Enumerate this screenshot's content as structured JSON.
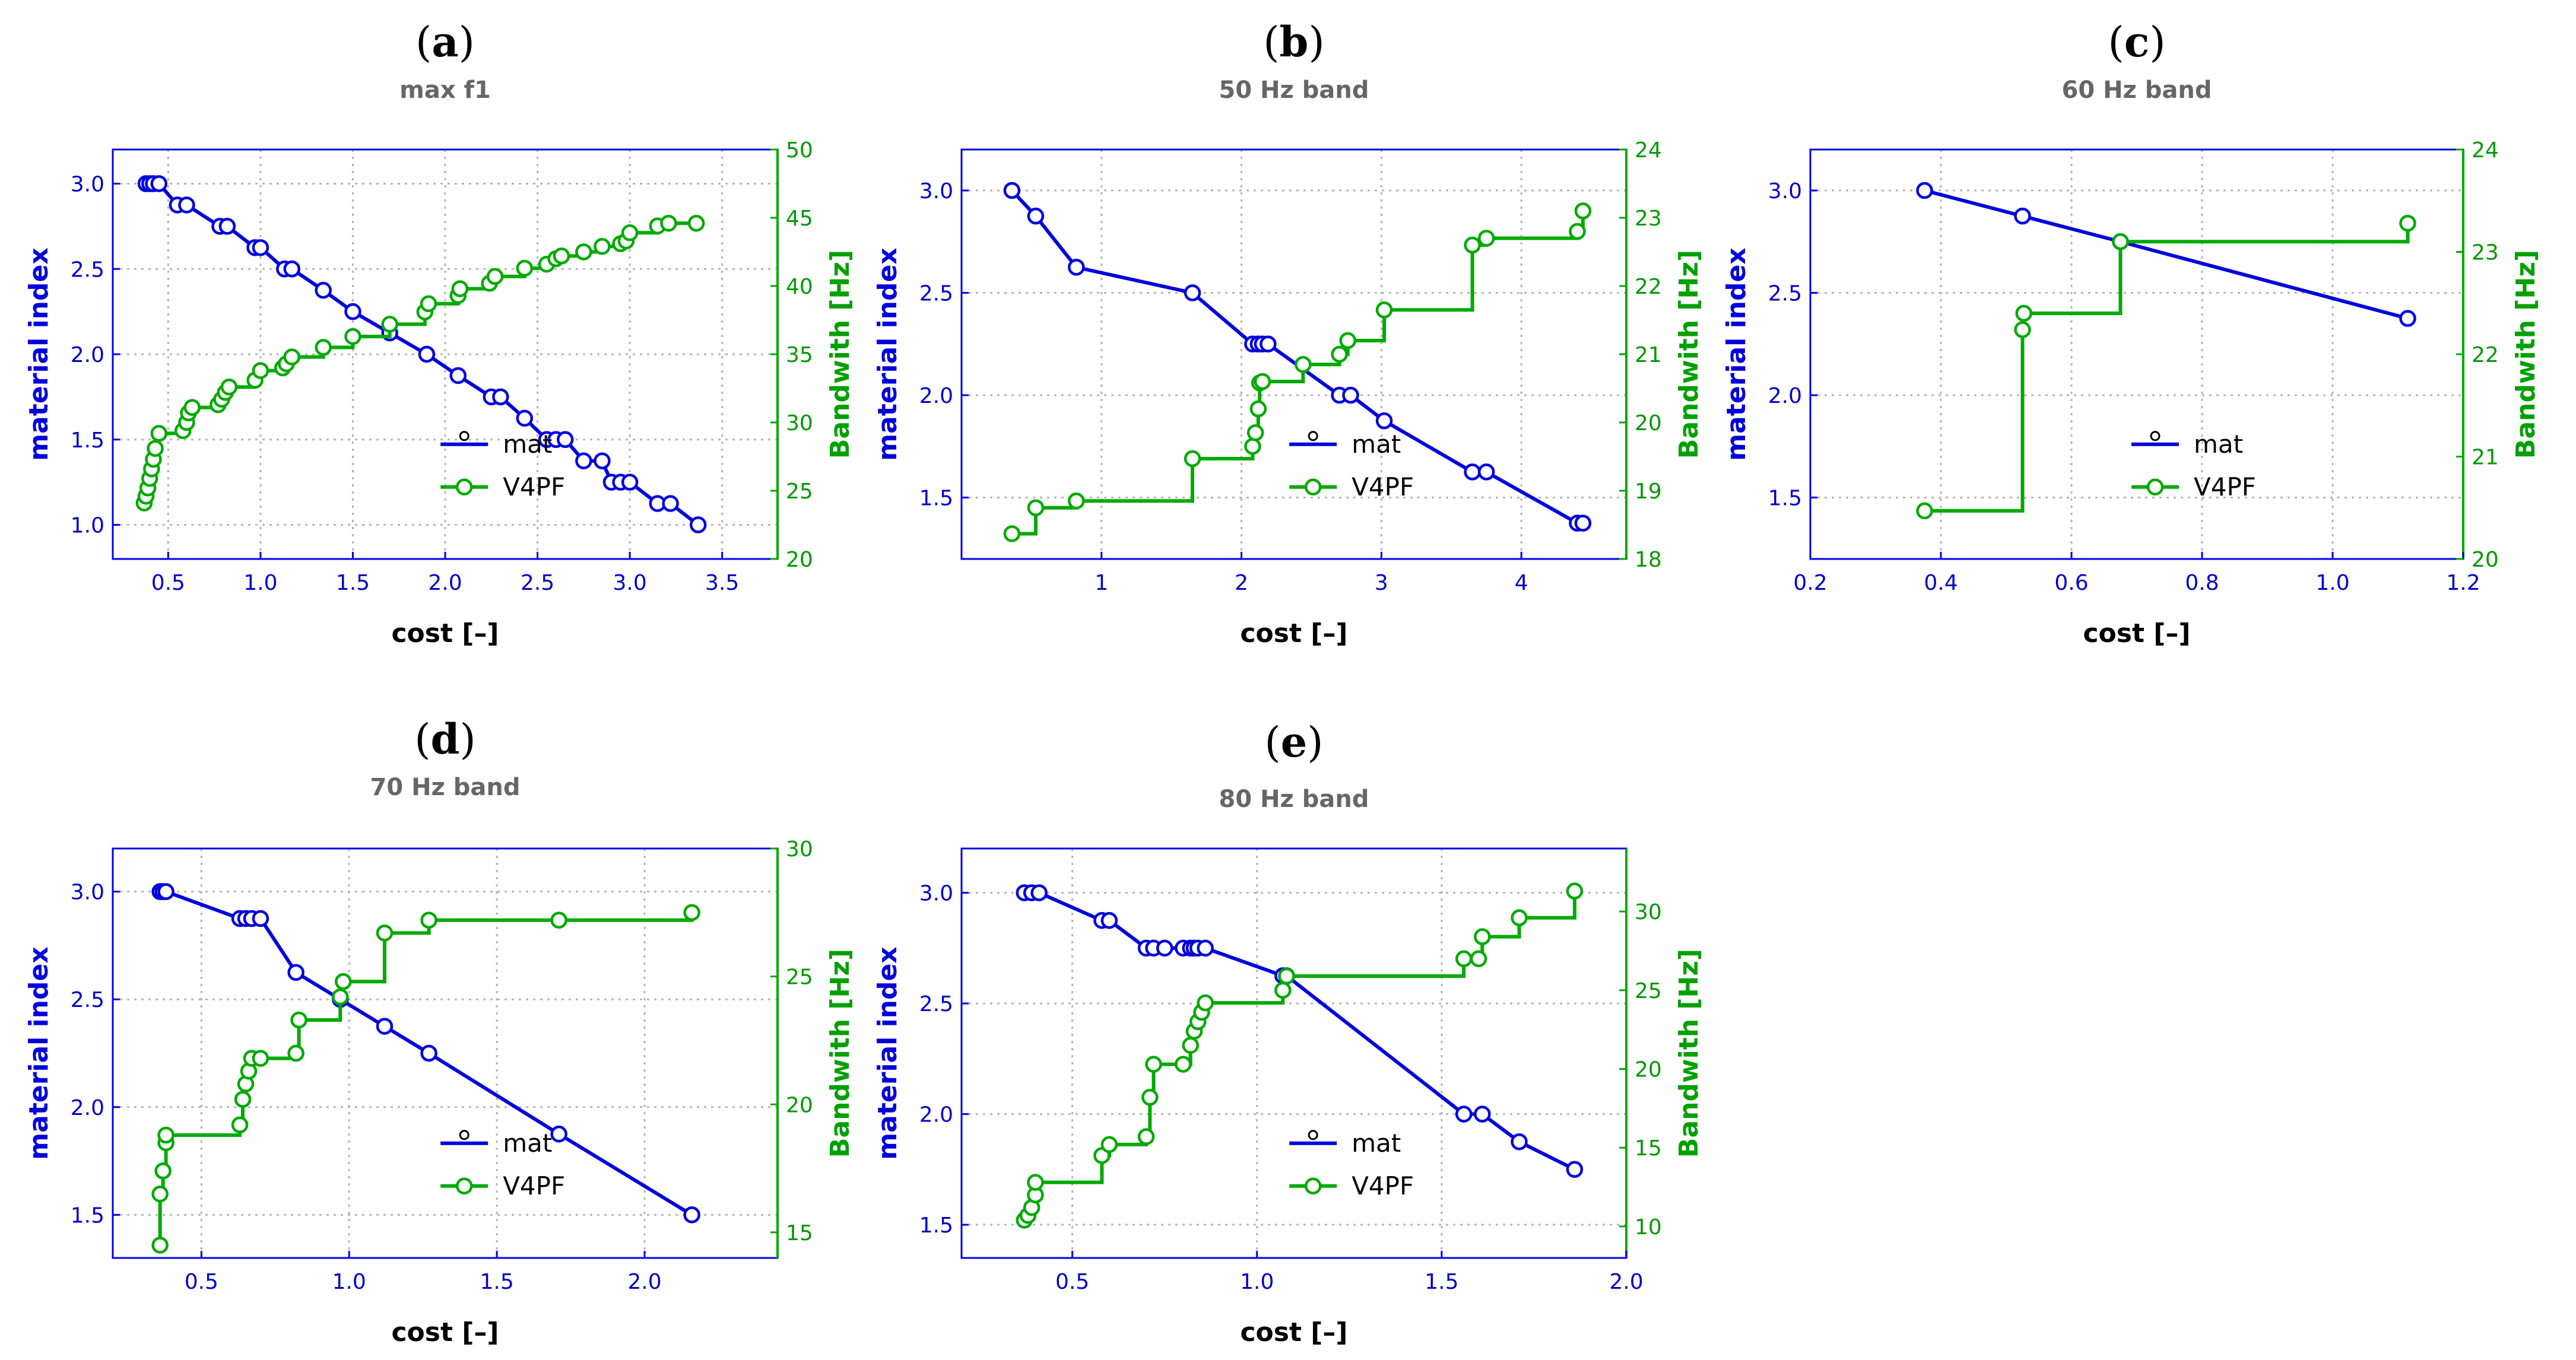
{
  "colors": {
    "mat": "#0000dd",
    "v4pf": "#00aa00",
    "axis": "#0000ee",
    "grid": "#b5b5b5"
  },
  "legend": {
    "mat": "mat",
    "v4pf": "V4PF"
  },
  "chart_data": [
    {
      "type": "line",
      "id": "a",
      "letter": "a",
      "title": "max f1",
      "xlabel": "cost [–]",
      "ylabel": "material index",
      "y2label": "Bandwith [Hz]",
      "xlim": [
        0.2,
        3.8
      ],
      "ylim": [
        0.8,
        3.2
      ],
      "y2lim": [
        20,
        50
      ],
      "xticks": [
        0.5,
        1.0,
        1.5,
        2.0,
        2.5,
        3.0,
        3.5
      ],
      "xticklabels": [
        "0.5",
        "1.0",
        "1.5",
        "2.0",
        "2.5",
        "3.0",
        "3.5"
      ],
      "yticks": [
        1.0,
        1.5,
        2.0,
        2.5,
        3.0
      ],
      "yticklabels": [
        "1.0",
        "1.5",
        "2.0",
        "2.5",
        "3.0"
      ],
      "y2ticks": [
        20,
        25,
        30,
        35,
        40,
        45,
        50
      ],
      "y2ticklabels": [
        "20",
        "25",
        "30",
        "35",
        "40",
        "45",
        "50"
      ],
      "series": [
        {
          "name": "mat",
          "axis": "left",
          "step": false,
          "x": [
            0.38,
            0.4,
            0.42,
            0.45,
            0.55,
            0.6,
            0.78,
            0.82,
            0.97,
            1.0,
            1.13,
            1.17,
            1.34,
            1.5,
            1.7,
            1.9,
            2.07,
            2.25,
            2.3,
            2.43,
            2.55,
            2.6,
            2.65,
            2.75,
            2.85,
            2.9,
            2.95,
            3.0,
            3.15,
            3.22,
            3.37
          ],
          "y": [
            3.0,
            3.0,
            3.0,
            3.0,
            2.875,
            2.875,
            2.75,
            2.75,
            2.625,
            2.625,
            2.5,
            2.5,
            2.375,
            2.25,
            2.125,
            2.0,
            1.875,
            1.75,
            1.75,
            1.625,
            1.5,
            1.5,
            1.5,
            1.375,
            1.375,
            1.25,
            1.25,
            1.25,
            1.125,
            1.125,
            1.0
          ]
        },
        {
          "name": "V4PF",
          "axis": "right",
          "step": true,
          "x": [
            0.37,
            0.38,
            0.39,
            0.4,
            0.41,
            0.42,
            0.43,
            0.45,
            0.58,
            0.6,
            0.61,
            0.63,
            0.77,
            0.79,
            0.81,
            0.83,
            0.97,
            1.0,
            1.12,
            1.14,
            1.17,
            1.34,
            1.5,
            1.7,
            1.89,
            1.91,
            2.07,
            2.08,
            2.24,
            2.27,
            2.43,
            2.55,
            2.6,
            2.63,
            2.75,
            2.85,
            2.95,
            2.98,
            3.0,
            3.15,
            3.21,
            3.36
          ],
          "y": [
            24.1,
            24.6,
            25.2,
            25.9,
            26.6,
            27.3,
            28.1,
            29.2,
            29.4,
            30.0,
            30.7,
            31.1,
            31.3,
            31.7,
            32.2,
            32.6,
            33.1,
            33.8,
            34.0,
            34.3,
            34.8,
            35.5,
            36.3,
            37.2,
            38.1,
            38.7,
            39.3,
            39.8,
            40.2,
            40.7,
            41.3,
            41.6,
            42.0,
            42.2,
            42.5,
            42.9,
            43.1,
            43.3,
            43.9,
            44.4,
            44.6,
            44.6
          ]
        }
      ]
    },
    {
      "type": "line",
      "id": "b",
      "letter": "b",
      "title": "50 Hz band",
      "xlabel": "cost [–]",
      "ylabel": "material index",
      "y2label": "Bandwith [Hz]",
      "xlim": [
        0.0,
        4.75
      ],
      "ylim": [
        1.2,
        3.2
      ],
      "y2lim": [
        18,
        24
      ],
      "xticks": [
        1,
        2,
        3,
        4
      ],
      "xticklabels": [
        "1",
        "2",
        "3",
        "4"
      ],
      "yticks": [
        1.5,
        2.0,
        2.5,
        3.0
      ],
      "yticklabels": [
        "1.5",
        "2.0",
        "2.5",
        "3.0"
      ],
      "y2ticks": [
        18,
        19,
        20,
        21,
        22,
        23,
        24
      ],
      "y2ticklabels": [
        "18",
        "19",
        "20",
        "21",
        "22",
        "23",
        "24"
      ],
      "series": [
        {
          "name": "mat",
          "axis": "left",
          "step": false,
          "x": [
            0.36,
            0.53,
            0.82,
            1.65,
            2.08,
            2.12,
            2.15,
            2.19,
            2.7,
            2.78,
            3.02,
            3.65,
            3.75,
            4.4,
            4.44
          ],
          "y": [
            3.0,
            2.875,
            2.625,
            2.5,
            2.25,
            2.25,
            2.25,
            2.25,
            2.0,
            2.0,
            1.875,
            1.625,
            1.625,
            1.375,
            1.375
          ]
        },
        {
          "name": "V4PF",
          "axis": "right",
          "step": true,
          "x": [
            0.36,
            0.53,
            0.82,
            1.65,
            2.08,
            2.1,
            2.12,
            2.13,
            2.15,
            2.44,
            2.7,
            2.76,
            3.02,
            3.65,
            3.75,
            4.4,
            4.44
          ],
          "y": [
            18.37,
            18.75,
            18.85,
            19.47,
            19.65,
            19.85,
            20.2,
            20.58,
            20.6,
            20.85,
            21.0,
            21.2,
            21.65,
            22.6,
            22.7,
            22.8,
            23.1
          ]
        }
      ]
    },
    {
      "type": "line",
      "id": "c",
      "letter": "c",
      "title": "60 Hz band",
      "xlabel": "cost [–]",
      "ylabel": "material index",
      "y2label": "Bandwith [Hz]",
      "xlim": [
        0.2,
        1.2
      ],
      "ylim": [
        1.2,
        3.2
      ],
      "y2lim": [
        20,
        24
      ],
      "xticks": [
        0.2,
        0.4,
        0.6,
        0.8,
        1.0,
        1.2
      ],
      "xticklabels": [
        "0.2",
        "0.4",
        "0.6",
        "0.8",
        "1.0",
        "1.2"
      ],
      "yticks": [
        1.5,
        2.0,
        2.5,
        3.0
      ],
      "yticklabels": [
        "1.5",
        "2.0",
        "2.5",
        "3.0"
      ],
      "y2ticks": [
        20,
        21,
        22,
        23,
        24
      ],
      "y2ticklabels": [
        "20",
        "21",
        "22",
        "23",
        "24"
      ],
      "series": [
        {
          "name": "mat",
          "axis": "left",
          "step": false,
          "x": [
            0.375,
            0.525,
            0.675,
            1.115
          ],
          "y": [
            3.0,
            2.875,
            2.75,
            2.375
          ]
        },
        {
          "name": "V4PF",
          "axis": "right",
          "step": true,
          "x": [
            0.375,
            0.525,
            0.527,
            0.675,
            1.115
          ],
          "y": [
            20.47,
            22.24,
            22.4,
            23.1,
            23.28
          ]
        }
      ]
    },
    {
      "type": "line",
      "id": "d",
      "letter": "d",
      "title": "70 Hz band",
      "xlabel": "cost [–]",
      "ylabel": "material index",
      "y2label": "Bandwith [Hz]",
      "xlim": [
        0.2,
        2.45
      ],
      "ylim": [
        1.3,
        3.2
      ],
      "y2lim": [
        14,
        30
      ],
      "xticks": [
        0.5,
        1.0,
        1.5,
        2.0
      ],
      "xticklabels": [
        "0.5",
        "1.0",
        "1.5",
        "2.0"
      ],
      "yticks": [
        1.5,
        2.0,
        2.5,
        3.0
      ],
      "yticklabels": [
        "1.5",
        "2.0",
        "2.5",
        "3.0"
      ],
      "y2ticks": [
        15,
        20,
        25,
        30
      ],
      "y2ticklabels": [
        "15",
        "20",
        "25",
        "30"
      ],
      "series": [
        {
          "name": "mat",
          "axis": "left",
          "step": false,
          "x": [
            0.36,
            0.37,
            0.38,
            0.63,
            0.65,
            0.67,
            0.7,
            0.82,
            0.97,
            1.12,
            1.27,
            1.71,
            2.16
          ],
          "y": [
            3.0,
            3.0,
            3.0,
            2.875,
            2.875,
            2.875,
            2.875,
            2.625,
            2.5,
            2.375,
            2.25,
            1.875,
            1.5
          ]
        },
        {
          "name": "V4PF",
          "axis": "right",
          "step": true,
          "x": [
            0.36,
            0.36,
            0.37,
            0.38,
            0.38,
            0.63,
            0.64,
            0.65,
            0.66,
            0.67,
            0.7,
            0.82,
            0.83,
            0.97,
            0.98,
            1.12,
            1.27,
            1.71,
            2.16
          ],
          "y": [
            14.5,
            16.5,
            17.4,
            18.5,
            18.8,
            19.2,
            20.2,
            20.8,
            21.3,
            21.8,
            21.8,
            22.0,
            23.3,
            24.2,
            24.8,
            26.7,
            27.2,
            27.2,
            27.5
          ]
        }
      ]
    },
    {
      "type": "line",
      "id": "e",
      "letter": "e",
      "title": "80 Hz band",
      "xlabel": "cost [–]",
      "ylabel": "material index",
      "y2label": "Bandwith [Hz]",
      "xlim": [
        0.2,
        2.0
      ],
      "ylim": [
        1.35,
        3.2
      ],
      "y2lim": [
        8,
        34
      ],
      "xticks": [
        0.5,
        1.0,
        1.5,
        2.0
      ],
      "xticklabels": [
        "0.5",
        "1.0",
        "1.5",
        "2.0"
      ],
      "yticks": [
        1.5,
        2.0,
        2.5,
        3.0
      ],
      "yticklabels": [
        "1.5",
        "2.0",
        "2.5",
        "3.0"
      ],
      "y2ticks": [
        10,
        15,
        20,
        25,
        30
      ],
      "y2ticklabels": [
        "10",
        "15",
        "20",
        "25",
        "30"
      ],
      "series": [
        {
          "name": "mat",
          "axis": "left",
          "step": false,
          "x": [
            0.37,
            0.39,
            0.41,
            0.58,
            0.6,
            0.7,
            0.72,
            0.75,
            0.8,
            0.82,
            0.83,
            0.84,
            0.86,
            1.07,
            1.08,
            1.56,
            1.61,
            1.71,
            1.86
          ],
          "y": [
            3.0,
            3.0,
            3.0,
            2.875,
            2.875,
            2.75,
            2.75,
            2.75,
            2.75,
            2.75,
            2.75,
            2.75,
            2.75,
            2.625,
            2.625,
            2.0,
            2.0,
            1.875,
            1.75
          ]
        },
        {
          "name": "V4PF",
          "axis": "right",
          "step": true,
          "x": [
            0.37,
            0.38,
            0.39,
            0.4,
            0.4,
            0.58,
            0.6,
            0.7,
            0.71,
            0.72,
            0.8,
            0.82,
            0.83,
            0.84,
            0.85,
            0.86,
            1.07,
            1.08,
            1.56,
            1.6,
            1.61,
            1.71,
            1.86
          ],
          "y": [
            10.4,
            10.7,
            11.2,
            12.0,
            12.8,
            14.5,
            15.2,
            15.7,
            18.2,
            20.3,
            20.3,
            21.5,
            22.4,
            23.0,
            23.6,
            24.2,
            25.0,
            25.9,
            27.0,
            27.0,
            28.4,
            29.6,
            31.3
          ]
        }
      ]
    }
  ]
}
